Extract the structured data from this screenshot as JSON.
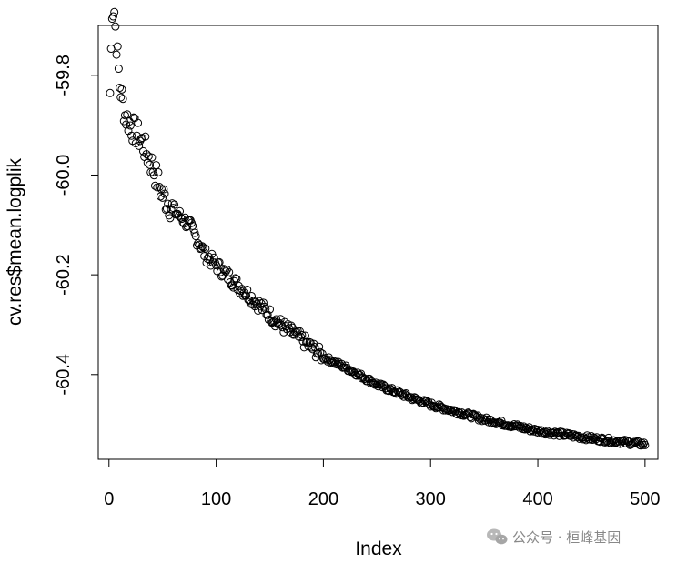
{
  "chart_data": {
    "type": "scatter",
    "xlabel": "Index",
    "ylabel": "cv.res$mean.logplik",
    "xlim": [
      -10,
      512
    ],
    "ylim": [
      -60.57,
      -59.7
    ],
    "x_ticks": [
      0,
      100,
      200,
      300,
      400,
      500
    ],
    "x_tick_labels": [
      "0",
      "100",
      "200",
      "300",
      "400",
      "500"
    ],
    "y_ticks": [
      -59.8,
      -60.0,
      -60.2,
      -60.4
    ],
    "y_tick_labels": [
      "-59.8",
      "-60.0",
      -60.2,
      "-60.4"
    ],
    "marker": "open-circle",
    "grid": false,
    "legend": "none",
    "n_points": 500,
    "x_start": 1,
    "key_points": [
      {
        "x": 1,
        "y": -59.835
      },
      {
        "x": 3,
        "y": -59.665
      },
      {
        "x": 5,
        "y": -59.67
      },
      {
        "x": 7,
        "y": -59.735
      },
      {
        "x": 10,
        "y": -59.82
      },
      {
        "x": 15,
        "y": -59.88
      },
      {
        "x": 20,
        "y": -59.9
      },
      {
        "x": 30,
        "y": -59.93
      },
      {
        "x": 40,
        "y": -59.98
      },
      {
        "x": 50,
        "y": -60.04
      },
      {
        "x": 60,
        "y": -60.07
      },
      {
        "x": 75,
        "y": -60.1
      },
      {
        "x": 90,
        "y": -60.16
      },
      {
        "x": 100,
        "y": -60.18
      },
      {
        "x": 120,
        "y": -60.22
      },
      {
        "x": 140,
        "y": -60.26
      },
      {
        "x": 160,
        "y": -60.3
      },
      {
        "x": 180,
        "y": -60.33
      },
      {
        "x": 200,
        "y": -60.365
      },
      {
        "x": 220,
        "y": -60.385
      },
      {
        "x": 250,
        "y": -60.42
      },
      {
        "x": 280,
        "y": -60.445
      },
      {
        "x": 300,
        "y": -60.46
      },
      {
        "x": 350,
        "y": -60.49
      },
      {
        "x": 400,
        "y": -60.513
      },
      {
        "x": 450,
        "y": -60.528
      },
      {
        "x": 500,
        "y": -60.54
      }
    ]
  },
  "watermark": {
    "icon": "wechat-icon",
    "text": "公众号 · 桓峰基因"
  }
}
